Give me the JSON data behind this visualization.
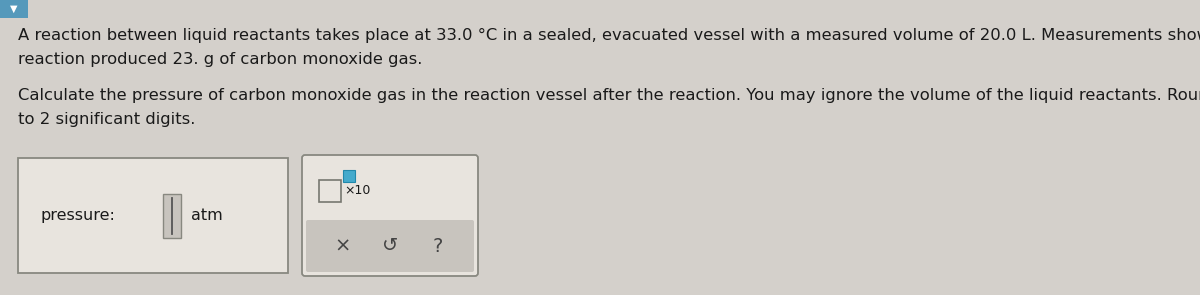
{
  "bg_color": "#d4d0cb",
  "text_color": "#1a1a1a",
  "paragraph1_line1": "A reaction between liquid reactants takes place at 33.0 °C in a sealed, evacuated vessel with a measured volume of 20.0 L. Measurements show that the",
  "paragraph1_line2": "reaction produced 23. g of carbon monoxide gas.",
  "paragraph2_line1": "Calculate the pressure of carbon monoxide gas in the reaction vessel after the reaction. You may ignore the volume of the liquid reactants. Round your answ",
  "paragraph2_line2": "to 2 significant digits.",
  "label_pressure": "pressure:",
  "label_atm": "atm",
  "font_size_body": 11.8,
  "font_size_label": 11.5,
  "box1_facecolor": "#e8e4de",
  "box1_edgecolor": "#888880",
  "box2_facecolor": "#e8e4de",
  "box2_edgecolor": "#888880",
  "bottom_panel_color": "#c8c4be",
  "input_field_color": "#c8c4be",
  "input_cursor_color": "#555555",
  "blue_sq_color": "#44aacc",
  "symbol_color": "#444444",
  "symbol_undo": "↺",
  "dropdown_bg": "#5599bb"
}
